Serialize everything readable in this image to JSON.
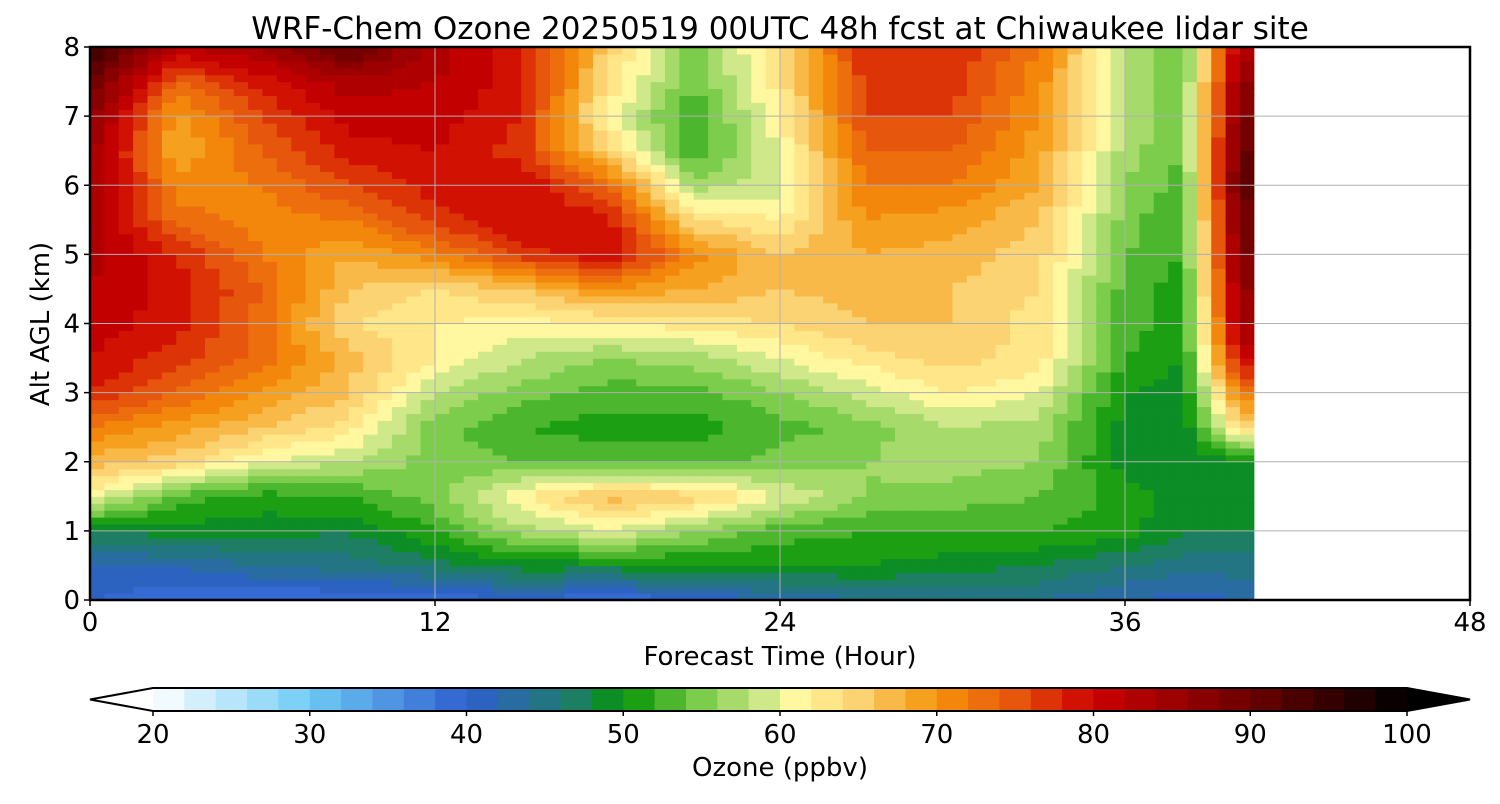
{
  "chart_data": {
    "type": "heatmap",
    "title": "WRF-Chem Ozone  20250519 00UTC 48h fcst at Chiwaukee lidar site",
    "xlabel": "Forecast Time (Hour)",
    "ylabel": "Alt AGL (km)",
    "xlim": [
      0,
      48
    ],
    "ylim": [
      0,
      8
    ],
    "xticks": [
      0,
      12,
      24,
      36,
      48
    ],
    "yticks": [
      0,
      1,
      2,
      3,
      4,
      5,
      6,
      7,
      8
    ],
    "grid": true,
    "data_end_hour": 40.5,
    "x": [
      0,
      3,
      6,
      9,
      12,
      15,
      18,
      21,
      24,
      27,
      30,
      33,
      36,
      38,
      40
    ],
    "y": [
      0,
      0.5,
      1,
      1.5,
      2,
      2.5,
      3,
      3.5,
      4,
      4.5,
      5,
      5.5,
      6,
      6.5,
      7,
      7.5,
      8
    ],
    "z": [
      [
        40,
        38,
        38,
        38,
        38,
        40,
        38,
        40,
        42,
        44,
        44,
        44,
        42,
        41,
        42
      ],
      [
        42,
        42,
        44,
        45,
        47,
        49,
        49,
        50,
        50,
        50,
        49,
        48,
        46,
        45,
        45
      ],
      [
        48,
        49,
        49,
        48,
        52,
        57,
        60,
        56,
        53,
        52,
        52,
        52,
        51,
        48,
        48
      ],
      [
        61,
        53,
        51,
        52,
        55,
        62,
        67,
        65,
        60,
        56,
        55,
        54,
        51,
        49,
        49
      ],
      [
        67,
        65,
        60,
        58,
        55,
        54,
        53,
        53,
        55,
        56,
        57,
        56,
        49,
        48,
        49
      ],
      [
        72,
        69,
        66,
        63,
        55,
        52,
        51,
        51,
        53,
        55,
        58,
        57,
        49,
        48,
        64
      ],
      [
        78,
        74,
        70,
        66,
        58,
        55,
        53,
        53,
        56,
        59,
        62,
        60,
        50,
        49,
        72
      ],
      [
        80,
        77,
        73,
        67,
        62,
        58,
        56,
        57,
        60,
        63,
        65,
        63,
        52,
        50,
        80
      ],
      [
        81,
        79,
        73,
        64,
        62,
        61,
        62,
        63,
        64,
        66,
        66,
        63,
        53,
        51,
        84
      ],
      [
        82,
        79,
        74,
        66,
        64,
        66,
        70,
        68,
        66,
        67,
        66,
        64,
        53,
        51,
        86
      ],
      [
        83,
        78,
        72,
        68,
        71,
        77,
        80,
        71,
        66,
        68,
        67,
        65,
        54,
        52,
        88
      ],
      [
        84,
        73,
        71,
        72,
        77,
        80,
        79,
        64,
        62,
        70,
        69,
        66,
        55,
        52,
        89
      ],
      [
        84,
        71,
        72,
        76,
        79,
        80,
        74,
        57,
        59,
        72,
        72,
        68,
        56,
        53,
        91
      ],
      [
        85,
        68,
        74,
        79,
        80,
        77,
        65,
        52,
        60,
        74,
        74,
        69,
        57,
        54,
        90
      ],
      [
        87,
        69,
        76,
        81,
        81,
        78,
        61,
        52,
        62,
        76,
        76,
        70,
        58,
        54,
        88
      ],
      [
        90,
        74,
        79,
        83,
        82,
        79,
        64,
        54,
        63,
        77,
        77,
        71,
        58,
        54,
        86
      ],
      [
        95,
        82,
        84,
        91,
        83,
        79,
        65,
        55,
        64,
        78,
        78,
        72,
        58,
        54,
        83
      ]
    ],
    "colorbar": {
      "label": "Ozone  (ppbv)",
      "min": 20,
      "max": 100,
      "step": 2,
      "ticks": [
        20,
        30,
        40,
        50,
        60,
        70,
        80,
        90,
        100
      ],
      "extend": "both",
      "stops": [
        [
          20,
          "#ffffff"
        ],
        [
          30,
          "#6ecbf5"
        ],
        [
          40,
          "#2f5fcf"
        ],
        [
          47,
          "#1e7e64"
        ],
        [
          50,
          "#059405"
        ],
        [
          55,
          "#7ccd4b"
        ],
        [
          59,
          "#cfe98a"
        ],
        [
          61,
          "#fff8a0"
        ],
        [
          65,
          "#fcd372"
        ],
        [
          70,
          "#f5930b"
        ],
        [
          75,
          "#e6560c"
        ],
        [
          80,
          "#cc0000"
        ],
        [
          90,
          "#6b0000"
        ],
        [
          100,
          "#000000"
        ]
      ]
    }
  }
}
